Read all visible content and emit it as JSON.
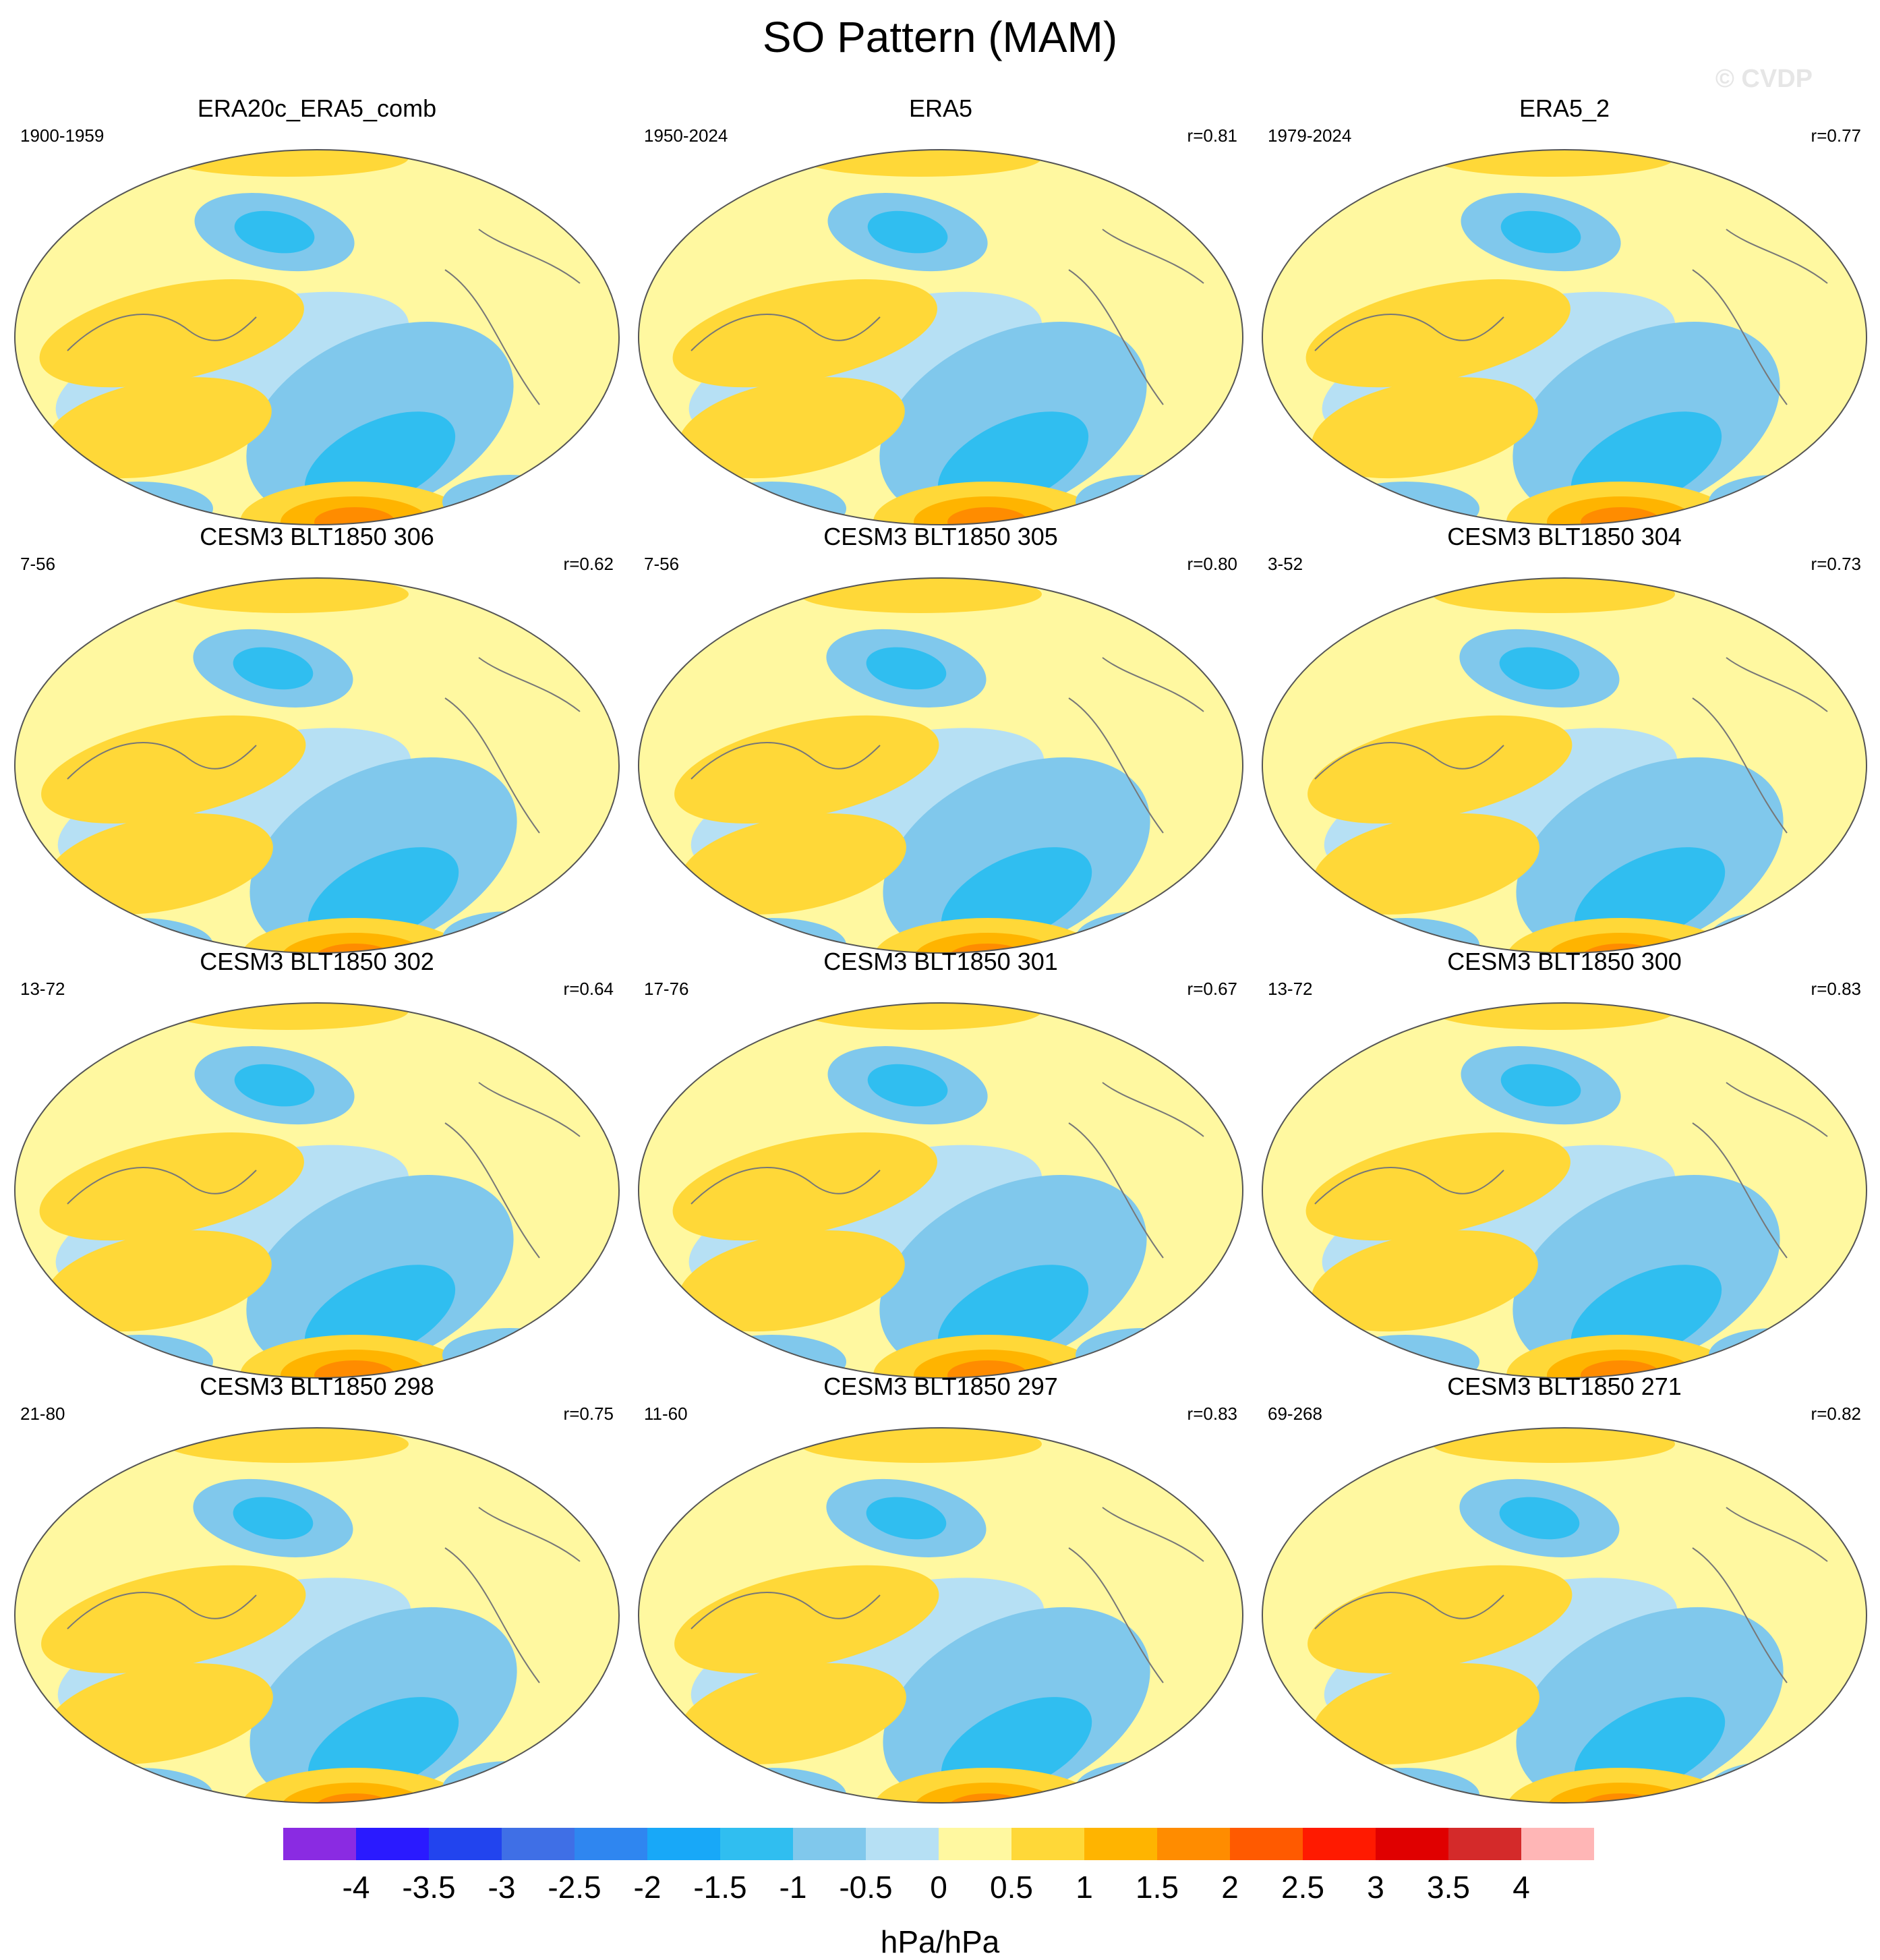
{
  "figure": {
    "title": "SO Pattern (MAM)",
    "watermark": "© CVDP"
  },
  "chart_data": {
    "type": "heatmap",
    "title": "SO Pattern (MAM)",
    "projection": "Robinson, Pacific-centered global map",
    "panels": [
      {
        "title": "ERA20c_ERA5_comb",
        "period": "1900-1959",
        "r": ""
      },
      {
        "title": "ERA5",
        "period": "1950-2024",
        "r": "r=0.81"
      },
      {
        "title": "ERA5_2",
        "period": "1979-2024",
        "r": "r=0.77"
      },
      {
        "title": "CESM3 BLT1850 306",
        "period": "7-56",
        "r": "r=0.62"
      },
      {
        "title": "CESM3 BLT1850 305",
        "period": "7-56",
        "r": "r=0.80"
      },
      {
        "title": "CESM3 BLT1850 304",
        "period": "3-52",
        "r": "r=0.73"
      },
      {
        "title": "CESM3 BLT1850 302",
        "period": "13-72",
        "r": "r=0.64"
      },
      {
        "title": "CESM3 BLT1850 301",
        "period": "17-76",
        "r": "r=0.67"
      },
      {
        "title": "CESM3 BLT1850 300",
        "period": "13-72",
        "r": "r=0.83"
      },
      {
        "title": "CESM3 BLT1850 298",
        "period": "21-80",
        "r": "r=0.75"
      },
      {
        "title": "CESM3 BLT1850 297",
        "period": "11-60",
        "r": "r=0.83"
      },
      {
        "title": "CESM3 BLT1850 271",
        "period": "69-268",
        "r": "r=0.82"
      }
    ],
    "colorbar": {
      "tick_labels": [
        "-4",
        "-3.5",
        "-3",
        "-2.5",
        "-2",
        "-1.5",
        "-1",
        "-0.5",
        "0",
        "0.5",
        "1",
        "1.5",
        "2",
        "2.5",
        "3",
        "3.5",
        "4"
      ],
      "colors": [
        "#8a2be2",
        "#2a1aff",
        "#2244ee",
        "#3f6fe6",
        "#2f86f0",
        "#18a8f8",
        "#30bef0",
        "#80c8ec",
        "#b6e0f4",
        "#fff8a0",
        "#ffd838",
        "#ffb400",
        "#ff8c00",
        "#ff5a00",
        "#ff1a00",
        "#e00000",
        "#d42a2a",
        "#ffb6b6"
      ],
      "units": "hPa/hPa"
    }
  }
}
